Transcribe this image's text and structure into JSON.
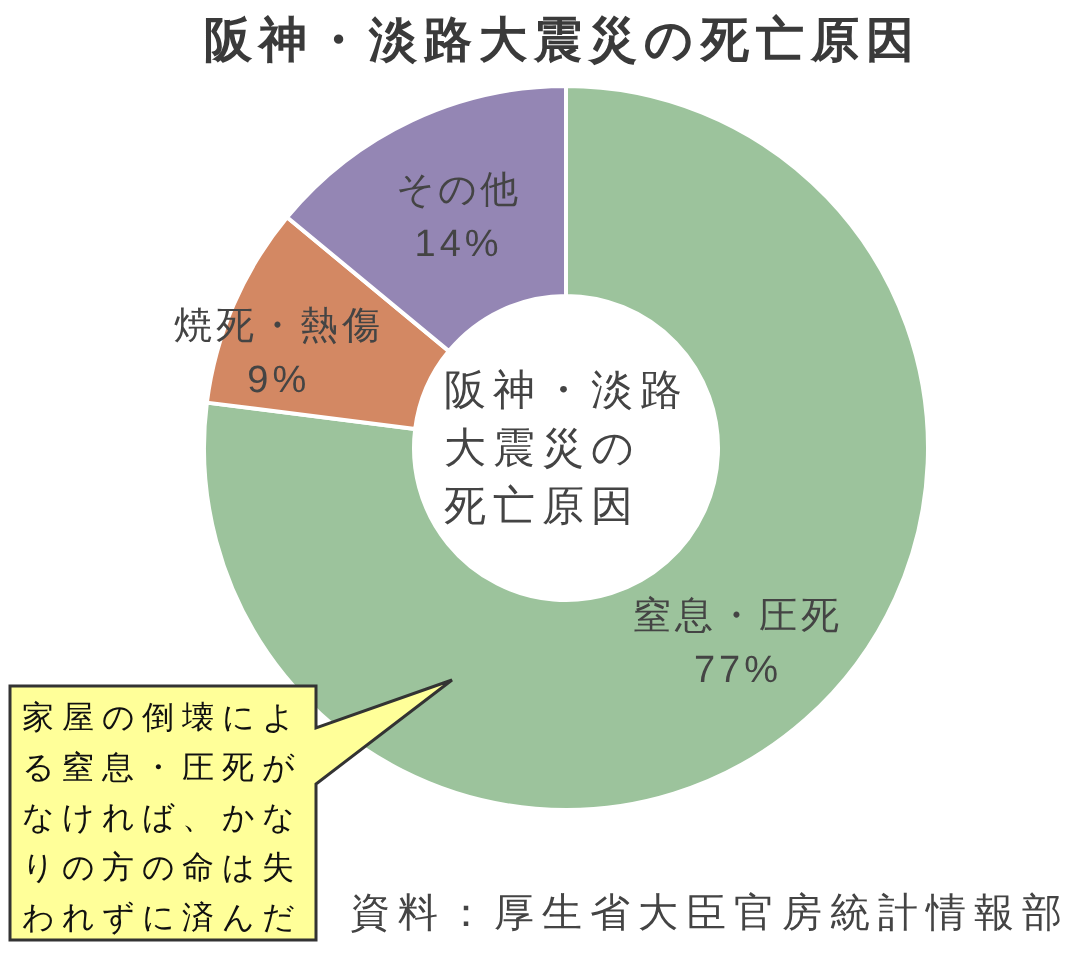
{
  "chart_data": {
    "type": "donut",
    "title": "阪神・淡路大震災の死亡原因",
    "categories": [
      "窒息・圧死",
      "焼死・熱傷",
      "その他"
    ],
    "values": [
      77,
      9,
      14
    ],
    "colors": [
      "#9cc39c",
      "#d38863",
      "#9486b4"
    ],
    "value_labels": [
      "77%",
      "9%",
      "14%"
    ],
    "annotations": [
      "阪神・淡路大震災の死亡原因",
      "家屋の倒壊による窒息・圧死がなければ、かなりの方の命は失われずに済んだ",
      "資料：厚生省大臣官房統計情報部"
    ]
  }
}
